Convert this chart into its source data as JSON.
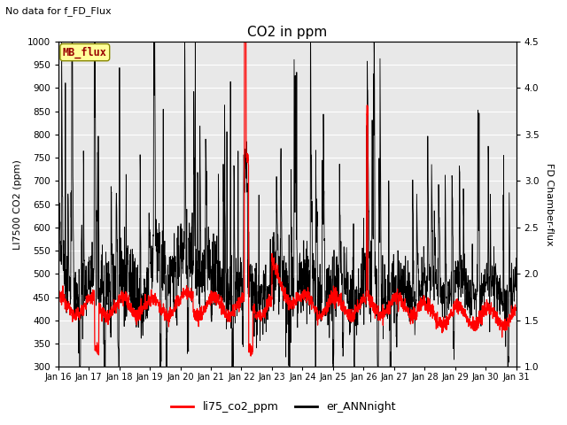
{
  "title": "CO2 in ppm",
  "sup_title": "No data for f_FD_Flux",
  "ylabel_left": "LI7500 CO2 (ppm)",
  "ylabel_right": "FD Chamber-flux",
  "ylim_left": [
    300,
    1000
  ],
  "ylim_right": [
    1.0,
    4.5
  ],
  "yticks_left": [
    300,
    350,
    400,
    450,
    500,
    550,
    600,
    650,
    700,
    750,
    800,
    850,
    900,
    950,
    1000
  ],
  "yticks_right": [
    1.0,
    1.5,
    2.0,
    2.5,
    3.0,
    3.5,
    4.0,
    4.5
  ],
  "xtick_labels": [
    "Jan 16",
    "Jan 17",
    "Jan 18",
    "Jan 19",
    "Jan 20",
    "Jan 21",
    "Jan 22",
    "Jan 23",
    "Jan 24",
    "Jan 25",
    "Jan 26",
    "Jan 27",
    "Jan 28",
    "Jan 29",
    "Jan 30",
    "Jan 31"
  ],
  "legend_box_color": "#ffff99",
  "legend_box_text": "MB_flux",
  "legend_box_text_color": "#990000",
  "plot_bg_color": "#e8e8e8",
  "fig_bg_color": "#ffffff",
  "grid_color": "#ffffff",
  "line1_color": "#ff0000",
  "line2_color": "#000000",
  "line1_label": "li75_co2_ppm",
  "line2_label": "er_ANNnight"
}
